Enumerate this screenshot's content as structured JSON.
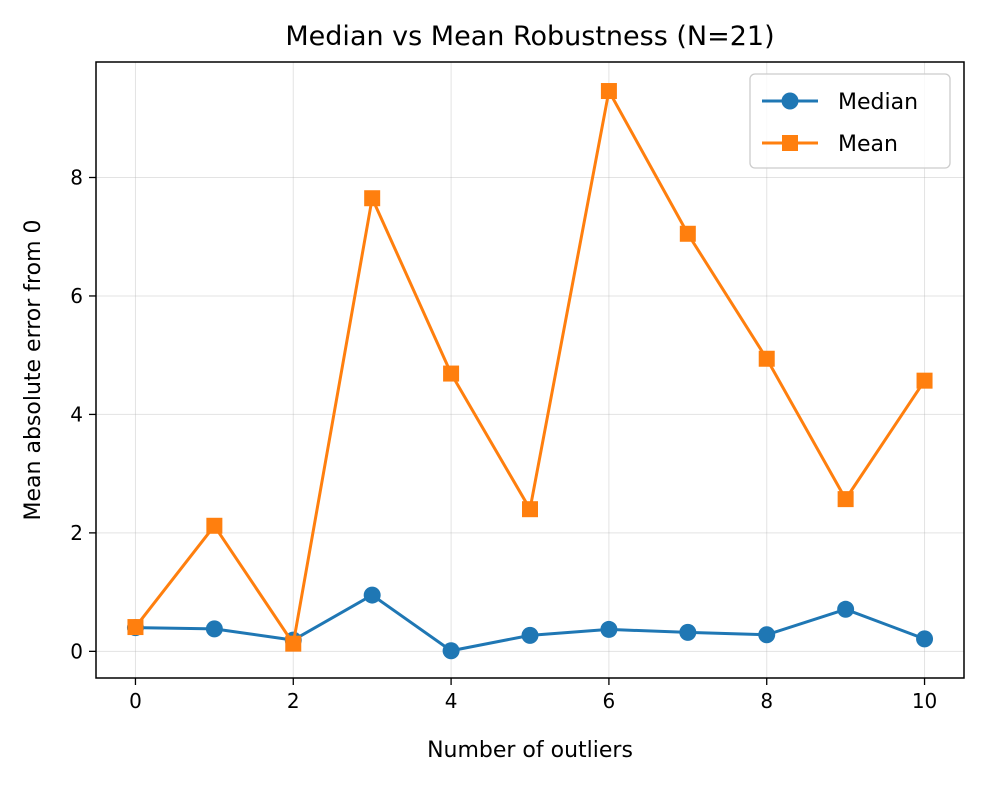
{
  "chart_data": {
    "type": "line",
    "title": "Median vs Mean Robustness (N=21)",
    "xlabel": "Number of outliers",
    "ylabel": "Mean absolute error from 0",
    "x": [
      0,
      1,
      2,
      3,
      4,
      5,
      6,
      7,
      8,
      9,
      10
    ],
    "xlim": [
      -0.5,
      10.5
    ],
    "ylim": [
      -0.45,
      9.95
    ],
    "xticks": [
      0,
      2,
      4,
      6,
      8,
      10
    ],
    "yticks": [
      0,
      2,
      4,
      6,
      8
    ],
    "grid": true,
    "legend_position": "top-right",
    "series": [
      {
        "name": "Median",
        "marker": "circle",
        "color": "#1f77b4",
        "values": [
          0.4,
          0.38,
          0.19,
          0.95,
          0.01,
          0.27,
          0.37,
          0.32,
          0.28,
          0.71,
          0.21
        ]
      },
      {
        "name": "Mean",
        "marker": "square",
        "color": "#ff7f0e",
        "values": [
          0.41,
          2.12,
          0.13,
          7.65,
          4.69,
          2.4,
          9.46,
          7.05,
          4.94,
          2.57,
          4.57
        ]
      }
    ]
  }
}
